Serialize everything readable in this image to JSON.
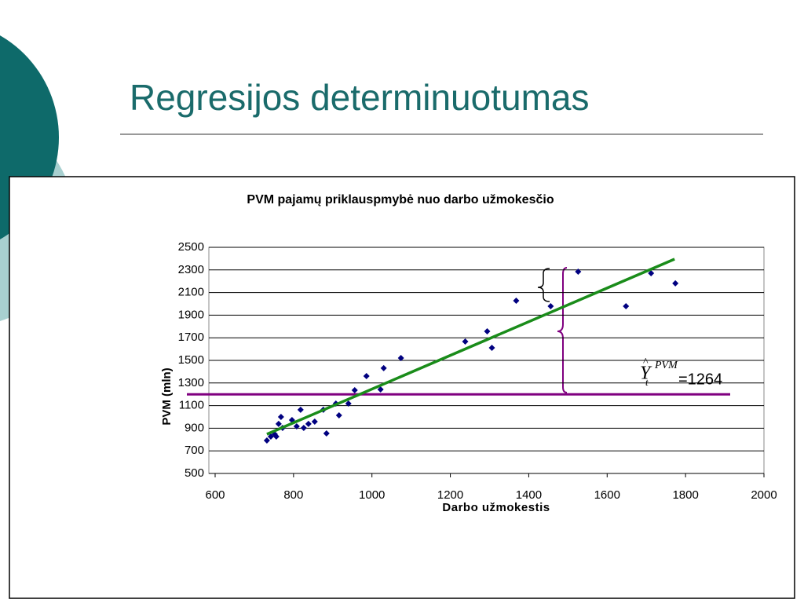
{
  "slide_title": "Regresijos determinuotumas",
  "chart_data": {
    "type": "scatter",
    "title": "PVM pajamų priklauspmybė nuo  darbo užmokesčio",
    "x_label": "Darbo  užmokestis",
    "y_label": "PVM (mln)",
    "xlim": [
      600,
      2000
    ],
    "xticks": [
      600,
      800,
      1000,
      1200,
      1400,
      1600,
      1800,
      2000
    ],
    "ylim": [
      500,
      2500
    ],
    "yticks": [
      500,
      700,
      900,
      1100,
      1300,
      1500,
      1700,
      1900,
      2100,
      2300,
      2500
    ],
    "grid": true,
    "color": "#000080",
    "x": [
      732,
      742,
      752,
      756,
      762,
      768,
      772,
      796,
      808,
      818,
      826,
      838,
      854,
      876,
      884,
      908,
      916,
      940,
      956,
      986,
      1022,
      1030,
      1074,
      1238,
      1294,
      1306,
      1368,
      1456,
      1526,
      1648,
      1712,
      1774
    ],
    "values": [
      792,
      826,
      847,
      826,
      938,
      1000,
      903,
      972,
      917,
      1063,
      903,
      938,
      958,
      1063,
      854,
      1118,
      1014,
      1118,
      1236,
      1361,
      1243,
      1431,
      1521,
      1667,
      1757,
      1611,
      2028,
      1979,
      2285,
      1979,
      2271,
      2181
    ],
    "trend_x": [
      732,
      1772
    ],
    "trend_y": [
      847,
      2396
    ],
    "trend_color": "#1a8c1a",
    "mean_line": 1200,
    "mean_color": "#800080",
    "annotation": {
      "symbol": "Y",
      "subscript": "t",
      "superscript": "PVM",
      "text": "=1264"
    }
  }
}
